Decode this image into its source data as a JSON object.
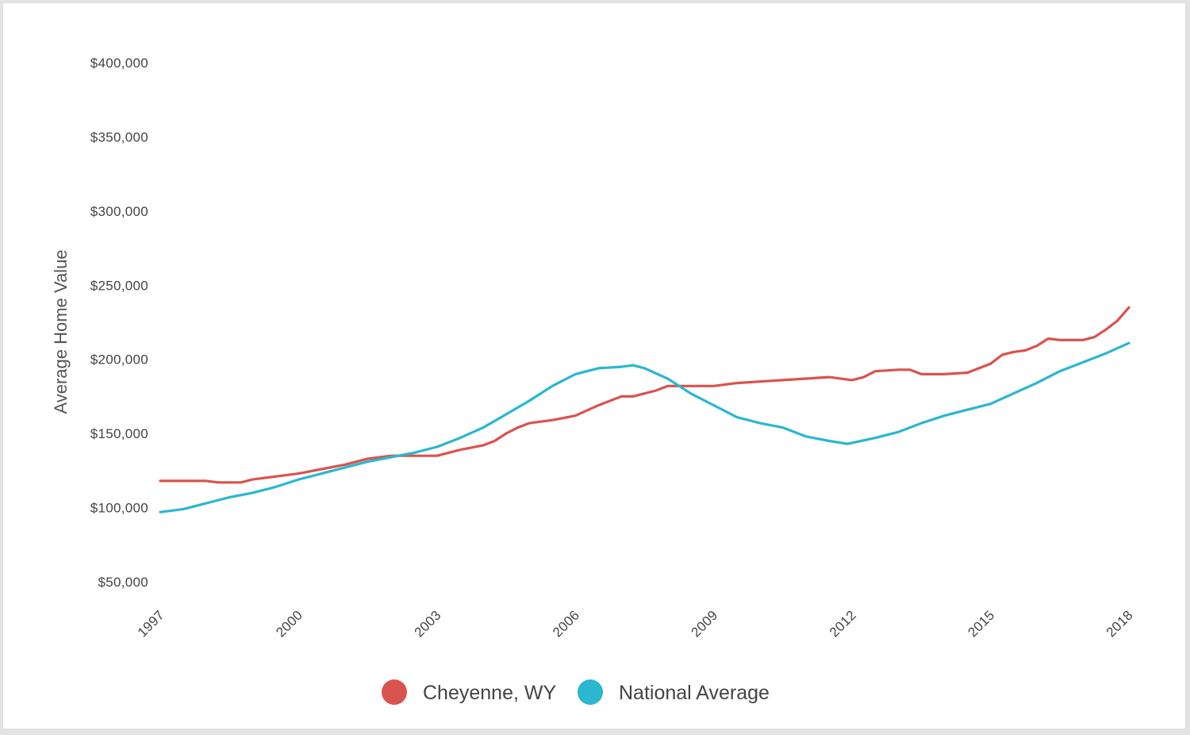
{
  "chart_data": {
    "type": "line",
    "title": "",
    "xlabel": "",
    "ylabel": "Average Home Value",
    "xlim": [
      1997,
      2018
    ],
    "ylim": [
      50000,
      400000
    ],
    "yticks": [
      {
        "value": 400000,
        "label": "$400,000"
      },
      {
        "value": 350000,
        "label": "$350,000"
      },
      {
        "value": 300000,
        "label": "$300,000"
      },
      {
        "value": 250000,
        "label": "$250,000"
      },
      {
        "value": 200000,
        "label": "$200,000"
      },
      {
        "value": 150000,
        "label": "$150,000"
      },
      {
        "value": 100000,
        "label": "$100,000"
      },
      {
        "value": 50000,
        "label": "$50,000"
      }
    ],
    "xticks": [
      {
        "value": 1997,
        "label": "1997"
      },
      {
        "value": 2000,
        "label": "2000"
      },
      {
        "value": 2003,
        "label": "2003"
      },
      {
        "value": 2006,
        "label": "2006"
      },
      {
        "value": 2009,
        "label": "2009"
      },
      {
        "value": 2012,
        "label": "2012"
      },
      {
        "value": 2015,
        "label": "2015"
      },
      {
        "value": 2018,
        "label": "2018"
      }
    ],
    "grid": false,
    "legend_position": "bottom-center",
    "series": [
      {
        "name": "Cheyenne, WY",
        "color": "#d9534f",
        "points": [
          [
            1997.0,
            118000
          ],
          [
            1998.0,
            118000
          ],
          [
            1998.25,
            117000
          ],
          [
            1998.75,
            117000
          ],
          [
            1999.0,
            119000
          ],
          [
            1999.5,
            121000
          ],
          [
            2000.0,
            123000
          ],
          [
            2000.5,
            126000
          ],
          [
            2001.0,
            129000
          ],
          [
            2001.5,
            133000
          ],
          [
            2002.0,
            135000
          ],
          [
            2002.5,
            135000
          ],
          [
            2003.0,
            135000
          ],
          [
            2003.5,
            139000
          ],
          [
            2004.0,
            142000
          ],
          [
            2004.25,
            145000
          ],
          [
            2004.5,
            150000
          ],
          [
            2004.75,
            154000
          ],
          [
            2005.0,
            157000
          ],
          [
            2005.5,
            159000
          ],
          [
            2006.0,
            162000
          ],
          [
            2006.5,
            169000
          ],
          [
            2007.0,
            175000
          ],
          [
            2007.25,
            175000
          ],
          [
            2007.5,
            177000
          ],
          [
            2007.75,
            179000
          ],
          [
            2008.0,
            182000
          ],
          [
            2008.5,
            182000
          ],
          [
            2009.0,
            182000
          ],
          [
            2009.5,
            184000
          ],
          [
            2010.0,
            185000
          ],
          [
            2010.5,
            186000
          ],
          [
            2011.0,
            187000
          ],
          [
            2011.5,
            188000
          ],
          [
            2012.0,
            186000
          ],
          [
            2012.25,
            188000
          ],
          [
            2012.5,
            192000
          ],
          [
            2013.0,
            193000
          ],
          [
            2013.25,
            193000
          ],
          [
            2013.5,
            190000
          ],
          [
            2014.0,
            190000
          ],
          [
            2014.5,
            191000
          ],
          [
            2015.0,
            197000
          ],
          [
            2015.25,
            203000
          ],
          [
            2015.5,
            205000
          ],
          [
            2015.75,
            206000
          ],
          [
            2016.0,
            209000
          ],
          [
            2016.25,
            214000
          ],
          [
            2016.5,
            213000
          ],
          [
            2016.75,
            213000
          ],
          [
            2017.0,
            213000
          ],
          [
            2017.25,
            215000
          ],
          [
            2017.5,
            220000
          ],
          [
            2017.75,
            226000
          ],
          [
            2018.0,
            235000
          ]
        ]
      },
      {
        "name": "National Average",
        "color": "#2ab7cf",
        "points": [
          [
            1997.0,
            97000
          ],
          [
            1997.5,
            99000
          ],
          [
            1998.0,
            103000
          ],
          [
            1998.5,
            107000
          ],
          [
            1999.0,
            110000
          ],
          [
            1999.5,
            114000
          ],
          [
            2000.0,
            119000
          ],
          [
            2000.5,
            123000
          ],
          [
            2001.0,
            127000
          ],
          [
            2001.5,
            131000
          ],
          [
            2002.0,
            134000
          ],
          [
            2002.5,
            137000
          ],
          [
            2003.0,
            141000
          ],
          [
            2003.5,
            147000
          ],
          [
            2004.0,
            154000
          ],
          [
            2004.5,
            163000
          ],
          [
            2005.0,
            172000
          ],
          [
            2005.5,
            182000
          ],
          [
            2006.0,
            190000
          ],
          [
            2006.5,
            194000
          ],
          [
            2007.0,
            195000
          ],
          [
            2007.25,
            196000
          ],
          [
            2007.5,
            194000
          ],
          [
            2008.0,
            187000
          ],
          [
            2008.25,
            182000
          ],
          [
            2008.5,
            177000
          ],
          [
            2009.0,
            169000
          ],
          [
            2009.5,
            161000
          ],
          [
            2010.0,
            157000
          ],
          [
            2010.5,
            154000
          ],
          [
            2011.0,
            148000
          ],
          [
            2011.5,
            145000
          ],
          [
            2011.9,
            143000
          ],
          [
            2012.5,
            147000
          ],
          [
            2013.0,
            151000
          ],
          [
            2013.5,
            157000
          ],
          [
            2014.0,
            162000
          ],
          [
            2014.5,
            166000
          ],
          [
            2015.0,
            170000
          ],
          [
            2015.5,
            177000
          ],
          [
            2016.0,
            184000
          ],
          [
            2016.5,
            192000
          ],
          [
            2017.0,
            198000
          ],
          [
            2017.5,
            204000
          ],
          [
            2018.0,
            211000
          ]
        ]
      }
    ]
  }
}
